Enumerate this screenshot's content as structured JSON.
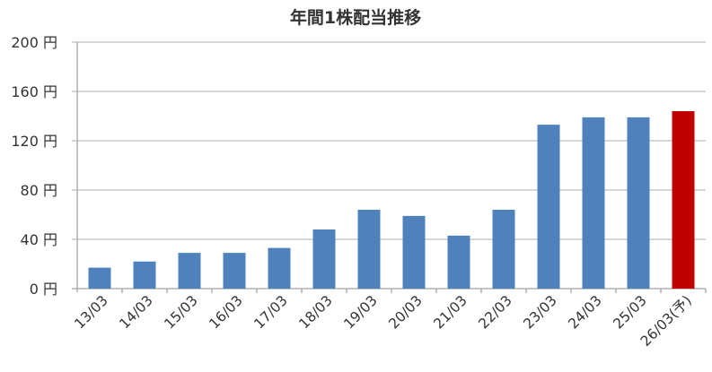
{
  "chart_data": {
    "type": "bar",
    "title": "年間1株配当推移",
    "categories": [
      "13/03",
      "14/03",
      "15/03",
      "16/03",
      "17/03",
      "18/03",
      "19/03",
      "20/03",
      "21/03",
      "22/03",
      "23/03",
      "24/03",
      "25/03",
      "26/03(予)"
    ],
    "values": [
      17,
      22,
      29,
      29,
      33,
      48,
      64,
      59,
      43,
      64,
      133,
      139,
      139,
      144
    ],
    "yticks": [
      "0 円",
      "40 円",
      "80 円",
      "120 円",
      "160 円",
      "200 円"
    ],
    "ylim": [
      0,
      200
    ],
    "grid": true,
    "colors": {
      "actual": "#4f81bd",
      "forecast": "#c00000"
    }
  }
}
